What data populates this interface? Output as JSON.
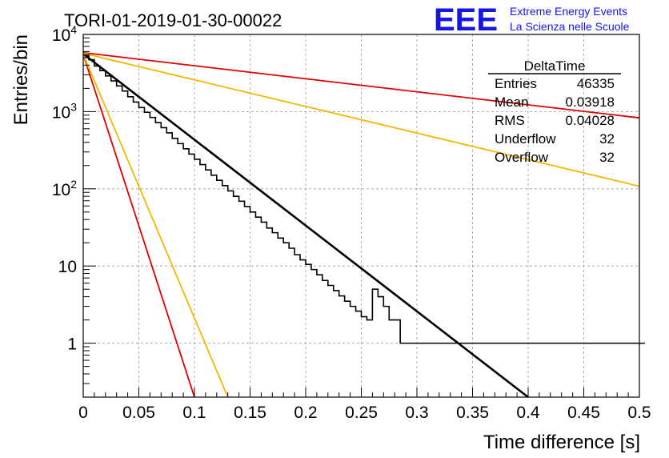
{
  "header": {
    "run_title": "TORI-01-2019-01-30-00022",
    "logo_text": "EEE",
    "logo_line1": "Extreme Energy Events",
    "logo_line2": "La Scienza nelle Scuole"
  },
  "stats": {
    "title": "DeltaTime",
    "rows": [
      {
        "label": "Entries",
        "value": "46335"
      },
      {
        "label": "Mean",
        "value": "0.03918"
      },
      {
        "label": "RMS",
        "value": "0.04028"
      },
      {
        "label": "Underflow",
        "value": "32"
      },
      {
        "label": "Overflow",
        "value": "32"
      }
    ]
  },
  "chart_data": {
    "type": "line",
    "xlabel": "Time difference [s]",
    "ylabel": "Entries/bin",
    "xlim": [
      0,
      0.5
    ],
    "ylim": [
      0.2,
      10000
    ],
    "y_scale": "log",
    "grid": true,
    "x_ticks": [
      "0",
      "0.05",
      "0.1",
      "0.15",
      "0.2",
      "0.25",
      "0.3",
      "0.35",
      "0.4",
      "0.45",
      "0.5"
    ],
    "x_tick_values": [
      0,
      0.05,
      0.1,
      0.15,
      0.2,
      0.25,
      0.3,
      0.35,
      0.4,
      0.45,
      0.5
    ],
    "y_ticks": [
      {
        "value": 1,
        "base": "1",
        "exp": ""
      },
      {
        "value": 10,
        "base": "10",
        "exp": ""
      },
      {
        "value": 100,
        "base": "10",
        "exp": "2"
      },
      {
        "value": 1000,
        "base": "10",
        "exp": "3"
      },
      {
        "value": 10000,
        "base": "10",
        "exp": "4"
      }
    ],
    "histogram": {
      "bin_width": 0.005,
      "values": [
        5400,
        4700,
        3900,
        3400,
        2900,
        2500,
        2150,
        1850,
        1560,
        1330,
        1130,
        980,
        840,
        720,
        620,
        530,
        450,
        385,
        330,
        282,
        241,
        206,
        176,
        150,
        129,
        110,
        94,
        80,
        69,
        59,
        50,
        43,
        37,
        31,
        27,
        23,
        20,
        17,
        14,
        12,
        10.5,
        9,
        7.7,
        6.5,
        5.6,
        4.8,
        4.1,
        3.5,
        3,
        2.6,
        2.2,
        2,
        5,
        4,
        3,
        2,
        2,
        1,
        1,
        1,
        1,
        1,
        1,
        1,
        1,
        1,
        1,
        1,
        1,
        1,
        1,
        1,
        1,
        1,
        1,
        1,
        1,
        1,
        1,
        1,
        1,
        1,
        1,
        1,
        1,
        1,
        1,
        1,
        1,
        1,
        1,
        1,
        1,
        1,
        1,
        1,
        1,
        1,
        1,
        1,
        1
      ]
    },
    "series": [
      {
        "color": "#000000",
        "points": [
          [
            0,
            5600
          ],
          [
            0.4,
            0.2
          ]
        ]
      },
      {
        "color": "#e00000",
        "points": [
          [
            0,
            5800
          ],
          [
            0.5,
            830
          ]
        ]
      },
      {
        "color": "#f5b800",
        "points": [
          [
            0,
            5700
          ],
          [
            0.5,
            108
          ]
        ]
      },
      {
        "color": "#e00000",
        "points": [
          [
            0,
            5500
          ],
          [
            0.1,
            0.2
          ]
        ]
      },
      {
        "color": "#f5b800",
        "points": [
          [
            0,
            5500
          ],
          [
            0.13,
            0.2
          ]
        ]
      }
    ]
  }
}
